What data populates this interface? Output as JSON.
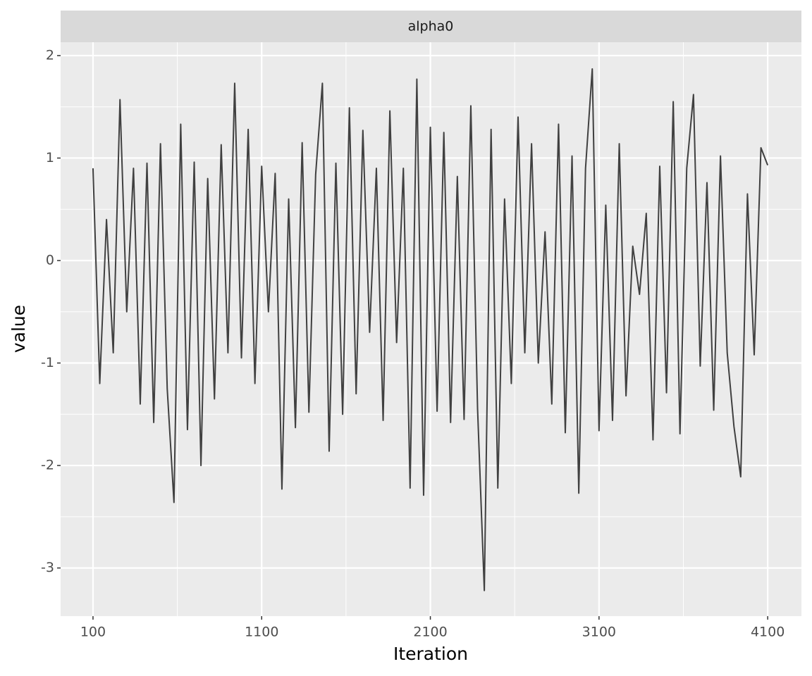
{
  "chart_data": {
    "type": "line",
    "strip": "alpha0",
    "xlabel": "Iteration",
    "ylabel": "value",
    "x": [
      100,
      140,
      180,
      220,
      260,
      300,
      340,
      380,
      420,
      460,
      500,
      540,
      580,
      620,
      660,
      700,
      740,
      780,
      820,
      860,
      900,
      940,
      980,
      1020,
      1060,
      1100,
      1140,
      1180,
      1220,
      1260,
      1300,
      1340,
      1380,
      1420,
      1460,
      1500,
      1540,
      1580,
      1620,
      1660,
      1700,
      1740,
      1780,
      1820,
      1860,
      1900,
      1940,
      1980,
      2020,
      2060,
      2100,
      2140,
      2180,
      2220,
      2260,
      2300,
      2340,
      2380,
      2420,
      2460,
      2500,
      2540,
      2580,
      2620,
      2660,
      2700,
      2740,
      2780,
      2820,
      2860,
      2900,
      2940,
      2980,
      3020,
      3060,
      3100,
      3140,
      3180,
      3220,
      3260,
      3300,
      3340,
      3380,
      3420,
      3460,
      3500,
      3540,
      3580,
      3620,
      3660,
      3700,
      3740,
      3780,
      3820,
      3860,
      3900,
      3940,
      3980,
      4020,
      4060,
      4100
    ],
    "series": [
      {
        "name": "alpha0",
        "color": "#404040",
        "values": [
          0.9,
          -1.2,
          0.4,
          -0.9,
          1.57,
          -0.5,
          0.9,
          -1.4,
          0.95,
          -1.58,
          1.14,
          -1.25,
          -2.36,
          1.33,
          -1.65,
          0.96,
          -2.0,
          0.8,
          -1.35,
          1.13,
          -0.9,
          1.73,
          -0.95,
          1.28,
          -1.2,
          0.92,
          -0.5,
          0.85,
          -2.23,
          0.6,
          -1.63,
          1.15,
          -1.48,
          0.84,
          1.73,
          -1.86,
          0.95,
          -1.5,
          1.49,
          -1.3,
          1.27,
          -0.7,
          0.9,
          -1.56,
          1.46,
          -0.8,
          0.9,
          -2.22,
          1.77,
          -2.29,
          1.3,
          -1.47,
          1.25,
          -1.58,
          0.82,
          -1.55,
          1.51,
          -1.45,
          -3.22,
          1.28,
          -2.22,
          0.6,
          -1.2,
          1.4,
          -0.9,
          1.14,
          -1.0,
          0.28,
          -1.4,
          1.33,
          -1.68,
          1.02,
          -2.27,
          0.9,
          1.87,
          -1.66,
          0.54,
          -1.56,
          1.14,
          -1.32,
          0.14,
          -0.33,
          0.46,
          -1.75,
          0.92,
          -1.29,
          1.55,
          -1.69,
          0.9,
          1.62,
          -1.03,
          0.76,
          -1.46,
          1.02,
          -0.9,
          -1.62,
          -2.11,
          0.65,
          -0.92,
          1.1,
          0.93
        ]
      }
    ],
    "xlim": [
      -92,
      4300
    ],
    "xticks": [
      100,
      1100,
      2100,
      3100,
      4100
    ],
    "ylim": [
      -3.47,
      2.13
    ],
    "yticks": [
      -3,
      -2,
      -1,
      0,
      1,
      2
    ],
    "grid": true
  }
}
